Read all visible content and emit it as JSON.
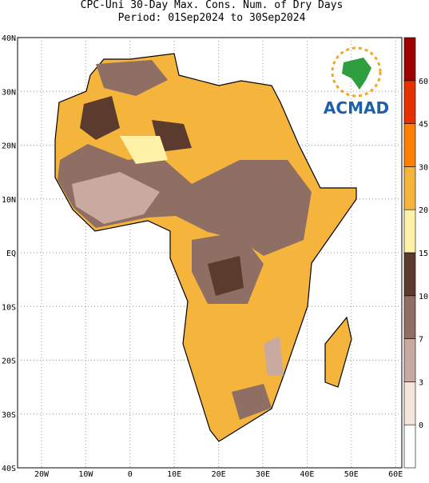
{
  "header": {
    "title": "CPC-Uni 30-Day Max. Cons. Num. of Dry Days",
    "subtitle": "Period: 01Sep2024 to 30Sep2024"
  },
  "map": {
    "lon_labels": [
      "20W",
      "10W",
      "0",
      "10E",
      "20E",
      "30E",
      "40E",
      "50E",
      "60E"
    ],
    "lat_labels": [
      "40N",
      "30N",
      "20N",
      "10N",
      "EQ",
      "10S",
      "20S",
      "30S",
      "40S"
    ]
  },
  "legend": {
    "ticks": [
      0,
      3,
      7,
      10,
      15,
      20,
      30,
      45,
      60
    ],
    "colors": [
      "#ffffff",
      "#f5e6dc",
      "#c9aaa0",
      "#8f6e64",
      "#5a3b2e",
      "#fff2a8",
      "#f5b43c",
      "#ff7f00",
      "#e53000",
      "#9e0000"
    ]
  },
  "logo": {
    "text": "ACMAD"
  }
}
